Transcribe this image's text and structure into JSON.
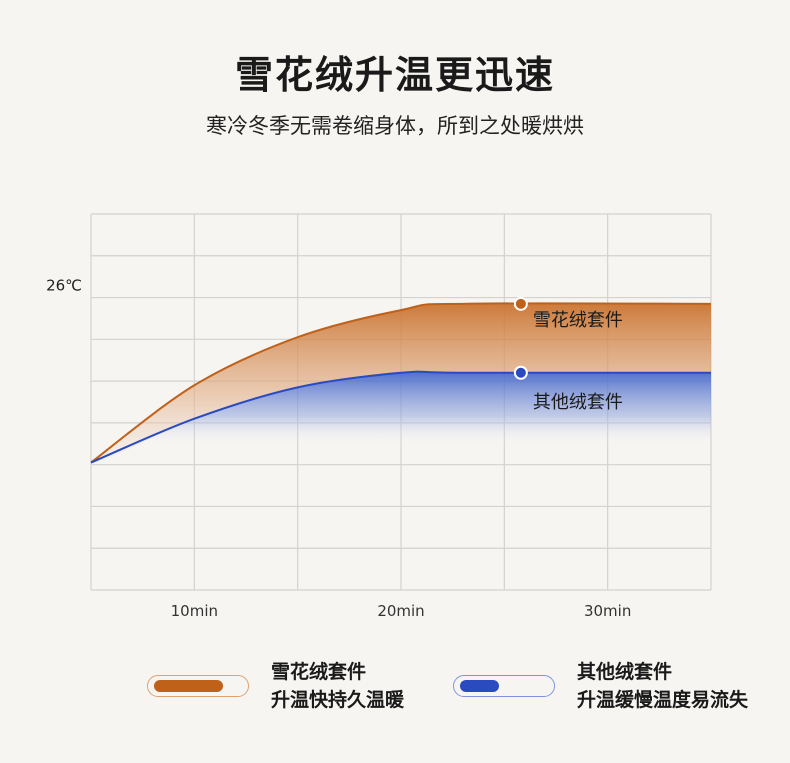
{
  "header": {
    "title": "雪花绒升温更迅速",
    "subtitle": "寒冷冬季无需卷缩身体，所到之处暖烘烘"
  },
  "chart_data": {
    "type": "area",
    "title": "雪花绒升温更迅速",
    "xlabel": "",
    "ylabel": "",
    "x_ticks": [
      {
        "value": 10,
        "label": "10min"
      },
      {
        "value": 20,
        "label": "20min"
      },
      {
        "value": 30,
        "label": "30min"
      }
    ],
    "y_ticks": [
      {
        "value": 26,
        "label": "26℃"
      }
    ],
    "xlim": [
      5,
      35
    ],
    "ylim": [
      19,
      28
    ],
    "grid": true,
    "x_grid_step": 5,
    "y_grid_step": 1,
    "series": [
      {
        "name": "雪花绒套件",
        "color": "#c0611a",
        "x": [
          5,
          10,
          15,
          20,
          23,
          35
        ],
        "y": [
          22.05,
          23.9,
          25.05,
          25.7,
          25.85,
          25.85
        ],
        "marker_x": 25.8
      },
      {
        "name": "其他绒套件",
        "color": "#2a4bbf",
        "x": [
          5,
          10,
          15,
          20,
          23,
          35
        ],
        "y": [
          22.05,
          23.1,
          23.85,
          24.2,
          24.2,
          24.2
        ],
        "marker_x": 25.8
      }
    ]
  },
  "legend": [
    {
      "name": "雪花绒套件",
      "desc": "升温快持久温暖",
      "color": "#c0611a",
      "level": 0.8
    },
    {
      "name": "其他绒套件",
      "desc": "升温缓慢温度易流失",
      "color": "#2a4bbf",
      "level": 0.45
    }
  ]
}
